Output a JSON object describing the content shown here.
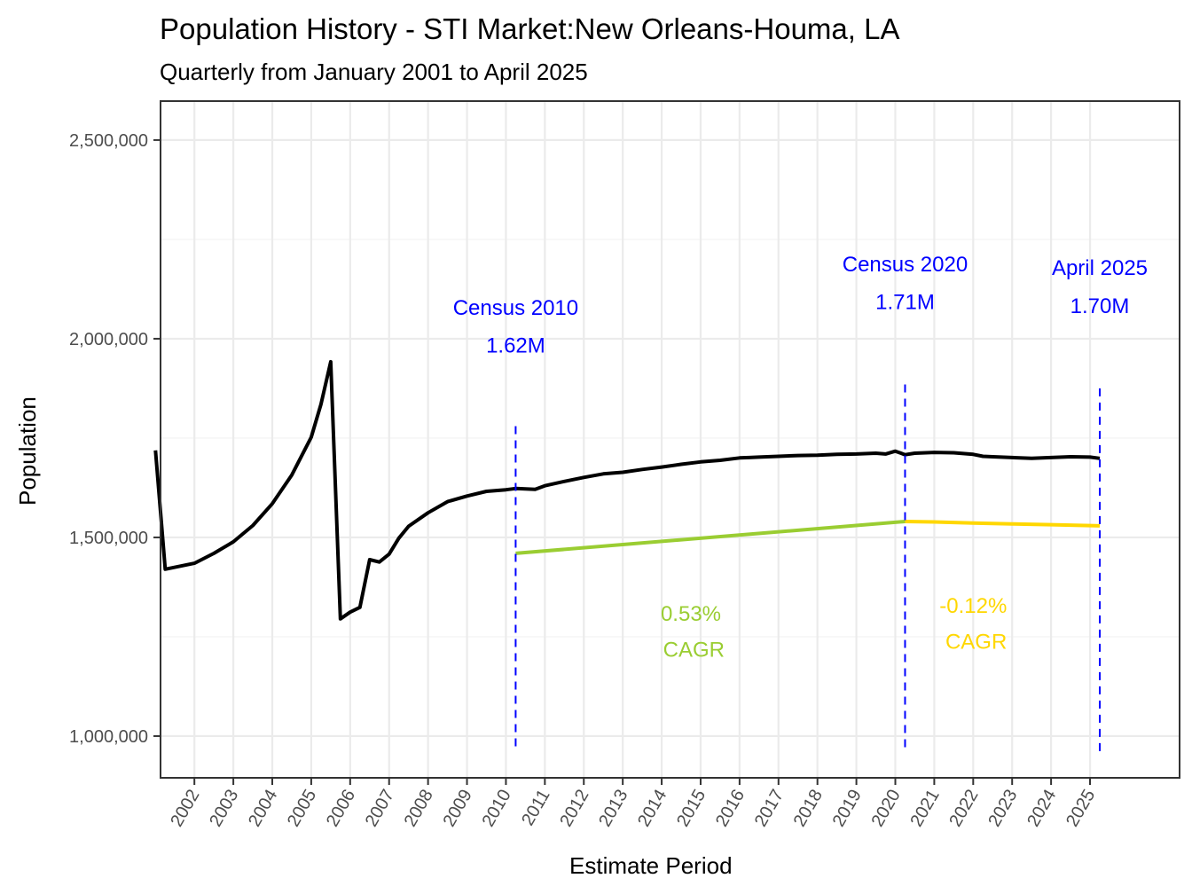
{
  "chart_data": {
    "type": "line",
    "title": "Population History - STI Market:New Orleans-Houma, LA",
    "subtitle": "Quarterly from January 2001 to April 2025",
    "xlabel": "Estimate Period",
    "ylabel": "Population",
    "xlim": [
      2001.13,
      2027.3
    ],
    "ylim": [
      895000,
      2598000
    ],
    "grid": true,
    "x_ticks": [
      2002,
      2003,
      2004,
      2005,
      2006,
      2007,
      2008,
      2009,
      2010,
      2011,
      2012,
      2013,
      2014,
      2015,
      2016,
      2017,
      2018,
      2019,
      2020,
      2021,
      2022,
      2023,
      2024,
      2025
    ],
    "x_tick_labels": [
      "2002",
      "2003",
      "2004",
      "2005",
      "2006",
      "2007",
      "2008",
      "2009",
      "2010",
      "2011",
      "2012",
      "2013",
      "2014",
      "2015",
      "2016",
      "2017",
      "2018",
      "2019",
      "2020",
      "2021",
      "2022",
      "2023",
      "2024",
      "2025"
    ],
    "y_ticks": [
      1000000,
      1500000,
      2000000,
      2500000
    ],
    "y_tick_labels": [
      "1,000,000",
      "1,500,000",
      "2,000,000",
      "2,500,000"
    ],
    "y_minor_ticks": [
      1250000,
      1750000,
      2250000
    ],
    "series": [
      {
        "name": "Population",
        "color": "#000000",
        "x": [
          2001.0,
          2001.25,
          2002.0,
          2002.5,
          2003.0,
          2003.5,
          2004.0,
          2004.5,
          2005.0,
          2005.25,
          2005.5,
          2005.75,
          2006.0,
          2006.25,
          2006.5,
          2006.75,
          2007.0,
          2007.25,
          2007.5,
          2008.0,
          2008.5,
          2009.0,
          2009.5,
          2010.0,
          2010.25,
          2010.5,
          2010.75,
          2011.0,
          2011.5,
          2012.0,
          2012.5,
          2013.0,
          2013.5,
          2014.0,
          2014.5,
          2015.0,
          2015.5,
          2016.0,
          2016.25,
          2016.5,
          2017.0,
          2017.5,
          2018.0,
          2018.5,
          2019.0,
          2019.5,
          2019.75,
          2020.0,
          2020.25,
          2020.5,
          2021.0,
          2021.5,
          2022.0,
          2022.25,
          2022.5,
          2023.0,
          2023.5,
          2024.0,
          2024.5,
          2025.0,
          2025.25
        ],
        "values": [
          1719000,
          1420000,
          1435000,
          1460000,
          1489000,
          1530000,
          1585000,
          1657000,
          1752000,
          1835000,
          1942000,
          1295000,
          1312000,
          1324000,
          1444000,
          1438000,
          1458000,
          1498000,
          1528000,
          1562000,
          1590000,
          1604000,
          1616000,
          1620000,
          1623000,
          1622000,
          1621000,
          1630000,
          1641000,
          1651000,
          1660000,
          1664000,
          1671000,
          1677000,
          1684000,
          1690000,
          1694000,
          1700000,
          1701000,
          1702000,
          1704000,
          1706000,
          1707000,
          1709000,
          1710000,
          1712000,
          1710000,
          1717000,
          1708000,
          1712000,
          1714000,
          1713000,
          1709000,
          1704000,
          1703000,
          1701000,
          1699000,
          1701000,
          1703000,
          1702000,
          1699000
        ]
      },
      {
        "name": "CAGR 2010-2020",
        "color": "#9ACD32",
        "x": [
          2010.25,
          2020.25
        ],
        "values": [
          1460000,
          1540000
        ]
      },
      {
        "name": "CAGR 2020-2025",
        "color": "#FFD700",
        "x": [
          2020.25,
          2021.0,
          2022.0,
          2023.0,
          2024.0,
          2025.25
        ],
        "values": [
          1540000,
          1539000,
          1536000,
          1534000,
          1532000,
          1529000
        ]
      }
    ],
    "vlines": [
      {
        "x": 2010.25,
        "color": "#0000FF",
        "from": 960000,
        "to": 1780000
      },
      {
        "x": 2020.25,
        "color": "#0000FF",
        "from": 960000,
        "to": 1885000
      },
      {
        "x": 2025.25,
        "color": "#0000FF",
        "from": 960000,
        "to": 1875000
      }
    ],
    "annotations": [
      {
        "name": "census-2010",
        "lines": [
          "Census 2010",
          "1.62M"
        ],
        "x": 2010.25,
        "y": [
          2060000,
          1965000
        ],
        "color": "#0000FF"
      },
      {
        "name": "census-2020",
        "lines": [
          "Census 2020",
          "1.71M"
        ],
        "x": 2020.25,
        "y": [
          2170000,
          2075000
        ],
        "color": "#0000FF"
      },
      {
        "name": "april-2025",
        "lines": [
          "April 2025",
          "1.70M"
        ],
        "x": 2025.25,
        "y": [
          2160000,
          2065000
        ],
        "color": "#0000FF"
      },
      {
        "name": "cagr-2010-2020",
        "lines": [
          "0.53%",
          " CAGR"
        ],
        "x": 2014.75,
        "y": [
          1290000,
          1200000
        ],
        "color": "#9ACD32"
      },
      {
        "name": "cagr-2020-2025",
        "lines": [
          "-0.12%",
          " CAGR"
        ],
        "x": 2022.0,
        "y": [
          1310000,
          1220000
        ],
        "color": "#FFD700"
      }
    ]
  }
}
